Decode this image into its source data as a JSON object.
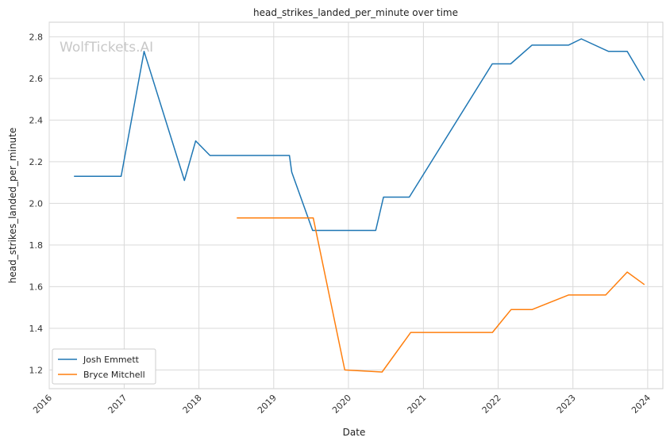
{
  "watermark": "WolfTickets.AI",
  "chart_data": {
    "type": "line",
    "title": "head_strikes_landed_per_minute over time",
    "xlabel": "Date",
    "ylabel": "head_strikes_landed_per_minute",
    "xlim": [
      "2016-01-01",
      "2024-03-15"
    ],
    "ylim": [
      1.11,
      2.87
    ],
    "x_ticks": [
      "2016",
      "2017",
      "2018",
      "2019",
      "2020",
      "2021",
      "2022",
      "2023",
      "2024"
    ],
    "y_ticks": [
      "1.2",
      "1.4",
      "1.6",
      "1.8",
      "2.0",
      "2.2",
      "2.4",
      "2.6",
      "2.8"
    ],
    "grid": true,
    "legend_position": "lower-left",
    "series": [
      {
        "name": "Josh Emmett",
        "color": "#1f77b4",
        "points": [
          [
            "2016-05-01",
            2.13
          ],
          [
            "2016-12-17",
            2.13
          ],
          [
            "2017-04-08",
            2.73
          ],
          [
            "2017-10-22",
            2.11
          ],
          [
            "2017-12-16",
            2.3
          ],
          [
            "2018-02-24",
            2.23
          ],
          [
            "2019-03-19",
            2.23
          ],
          [
            "2019-03-30",
            2.15
          ],
          [
            "2019-07-10",
            1.87
          ],
          [
            "2020-05-13",
            1.87
          ],
          [
            "2020-06-20",
            2.03
          ],
          [
            "2020-10-24",
            2.03
          ],
          [
            "2021-12-03",
            2.67
          ],
          [
            "2022-03-03",
            2.67
          ],
          [
            "2022-06-15",
            2.76
          ],
          [
            "2022-12-10",
            2.76
          ],
          [
            "2023-02-11",
            2.79
          ],
          [
            "2023-06-24",
            2.73
          ],
          [
            "2023-09-23",
            2.73
          ],
          [
            "2023-12-16",
            2.59
          ]
        ]
      },
      {
        "name": "Bryce Mitchell",
        "color": "#ff7f0e",
        "points": [
          [
            "2018-07-05",
            1.93
          ],
          [
            "2019-07-13",
            1.93
          ],
          [
            "2019-12-14",
            1.2
          ],
          [
            "2020-06-13",
            1.19
          ],
          [
            "2020-10-31",
            1.38
          ],
          [
            "2021-12-04",
            1.38
          ],
          [
            "2022-03-05",
            1.49
          ],
          [
            "2022-06-15",
            1.49
          ],
          [
            "2022-12-10",
            1.56
          ],
          [
            "2023-06-10",
            1.56
          ],
          [
            "2023-09-23",
            1.67
          ],
          [
            "2023-12-16",
            1.61
          ]
        ]
      }
    ]
  }
}
